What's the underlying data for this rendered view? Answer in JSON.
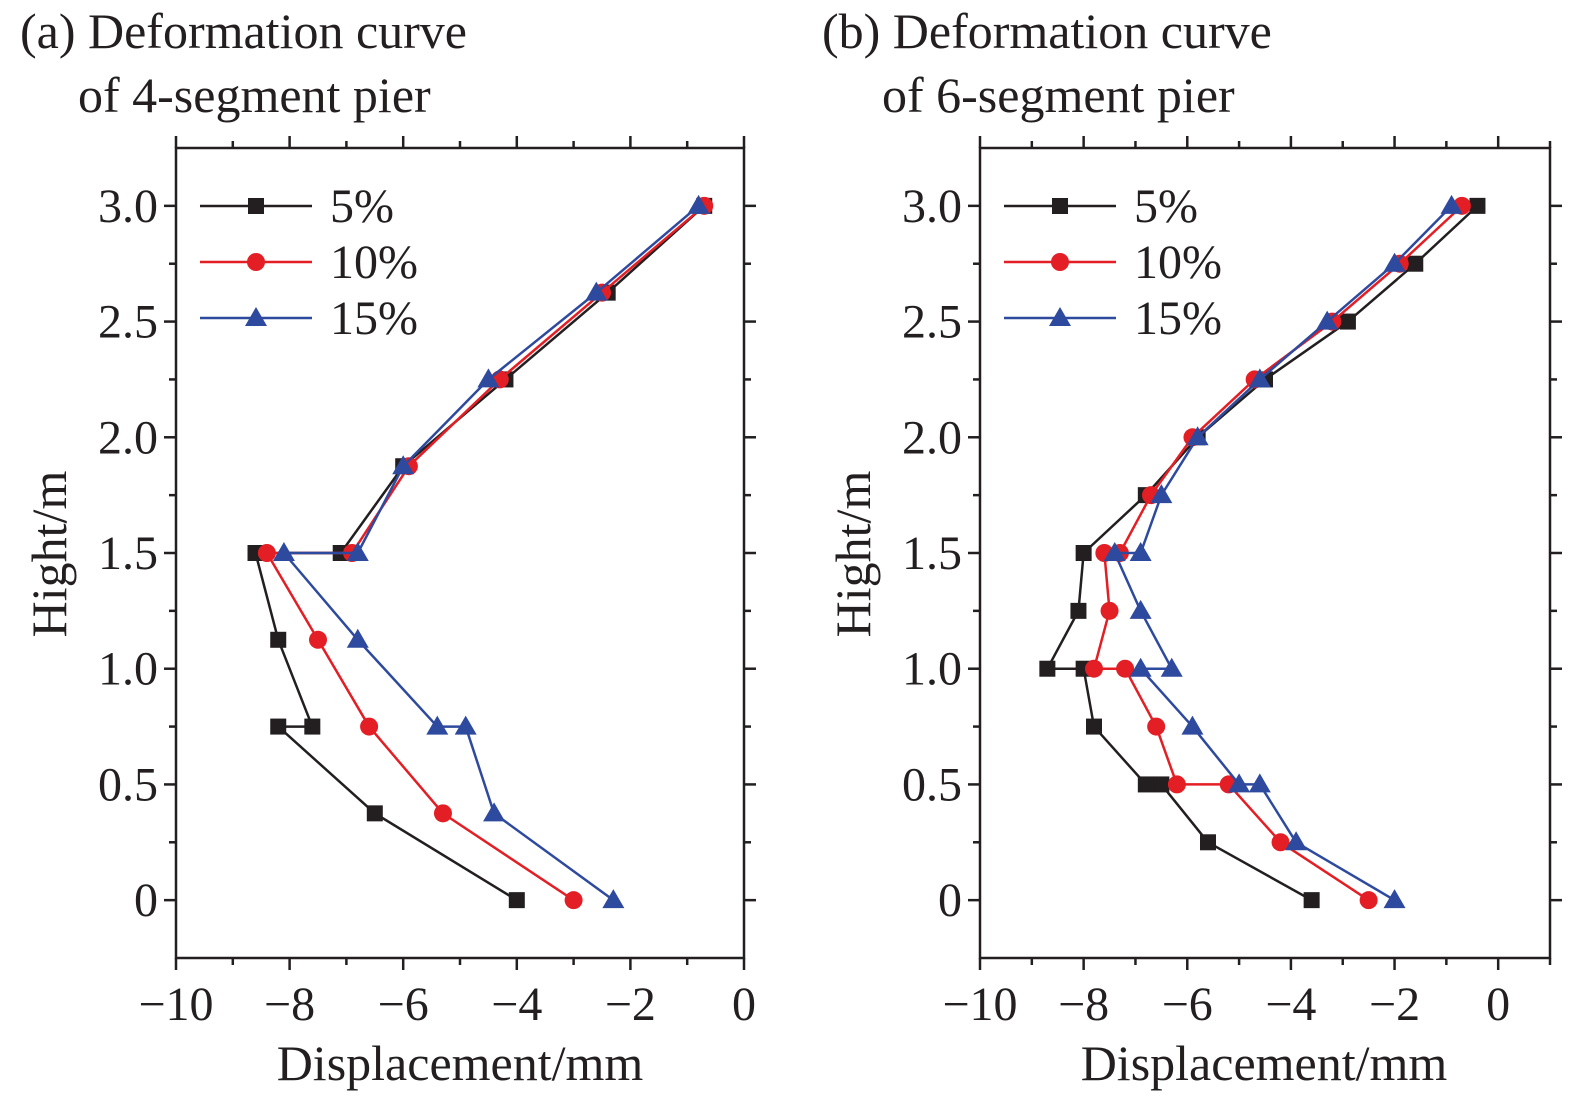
{
  "chart_data": [
    {
      "type": "line",
      "title_line1": "(a) Deformation curve",
      "title_line2": "of 4-segment pier",
      "xlabel": "Displacement/mm",
      "ylabel": "Hight/m",
      "xlim": [
        -10,
        0
      ],
      "ylim": [
        -0.25,
        3.25
      ],
      "xticks": [
        -10,
        -8,
        -6,
        -4,
        -2,
        0
      ],
      "xtick_labels": [
        "−10",
        "−8",
        "−6",
        "−4",
        "−2",
        "0"
      ],
      "yticks": [
        0,
        0.5,
        1.0,
        1.5,
        2.0,
        2.5,
        3.0
      ],
      "ytick_labels": [
        "0",
        "0.5",
        "1.0",
        "1.5",
        "2.0",
        "2.5",
        "3.0"
      ],
      "grid": false,
      "legend_position": "top-left",
      "series": [
        {
          "name": "5%",
          "color": "#231f20",
          "marker": "square",
          "x": [
            -4.0,
            -6.5,
            -8.2,
            -7.6,
            -8.2,
            -8.6,
            -7.1,
            -6.0,
            -4.2,
            -2.4,
            -0.7
          ],
          "y": [
            0,
            0.375,
            0.75,
            0.75,
            1.125,
            1.5,
            1.5,
            1.875,
            2.25,
            2.625,
            3.0
          ]
        },
        {
          "name": "10%",
          "color": "#e31e24",
          "marker": "circle",
          "x": [
            -3.0,
            -5.3,
            -6.6,
            -7.5,
            -8.4,
            -6.9,
            -5.9,
            -4.3,
            -2.5,
            -0.7
          ],
          "y": [
            0,
            0.375,
            0.75,
            1.125,
            1.5,
            1.5,
            1.875,
            2.25,
            2.625,
            3.0
          ]
        },
        {
          "name": "15%",
          "color": "#2e4a9e",
          "marker": "triangle",
          "x": [
            -2.3,
            -4.4,
            -4.9,
            -5.4,
            -6.8,
            -8.1,
            -6.8,
            -6.0,
            -4.5,
            -2.6,
            -0.8
          ],
          "y": [
            0,
            0.375,
            0.75,
            0.75,
            1.125,
            1.5,
            1.5,
            1.875,
            2.25,
            2.625,
            3.0
          ]
        }
      ]
    },
    {
      "type": "line",
      "title_line1": "(b) Deformation curve",
      "title_line2": "of 6-segment pier",
      "xlabel": "Displacement/mm",
      "ylabel": "Hight/m",
      "xlim": [
        -10,
        1
      ],
      "ylim": [
        -0.25,
        3.25
      ],
      "xticks": [
        -10,
        -8,
        -6,
        -4,
        -2,
        0
      ],
      "xtick_labels": [
        "−10",
        "−8",
        "−6",
        "−4",
        "−2",
        "0"
      ],
      "yticks": [
        0,
        0.5,
        1.0,
        1.5,
        2.0,
        2.5,
        3.0
      ],
      "ytick_labels": [
        "0",
        "0.5",
        "1.0",
        "1.5",
        "2.0",
        "2.5",
        "3.0"
      ],
      "grid": false,
      "legend_position": "top-left",
      "series": [
        {
          "name": "5%",
          "color": "#231f20",
          "marker": "square",
          "x": [
            -3.6,
            -5.6,
            -6.5,
            -6.8,
            -7.8,
            -8.0,
            -8.7,
            -8.1,
            -8.0,
            -6.8,
            -5.8,
            -4.5,
            -2.9,
            -1.6,
            -0.4
          ],
          "y": [
            0,
            0.25,
            0.5,
            0.5,
            0.75,
            1.0,
            1.0,
            1.25,
            1.5,
            1.75,
            2.0,
            2.25,
            2.5,
            2.75,
            3.0
          ]
        },
        {
          "name": "10%",
          "color": "#e31e24",
          "marker": "circle",
          "x": [
            -2.5,
            -4.2,
            -5.2,
            -6.2,
            -6.6,
            -7.2,
            -7.8,
            -7.5,
            -7.6,
            -7.3,
            -6.7,
            -5.9,
            -4.7,
            -3.2,
            -1.9,
            -0.7
          ],
          "y": [
            0,
            0.25,
            0.5,
            0.5,
            0.75,
            1.0,
            1.0,
            1.25,
            1.5,
            1.5,
            1.75,
            2.0,
            2.25,
            2.5,
            2.75,
            3.0
          ]
        },
        {
          "name": "15%",
          "color": "#2e4a9e",
          "marker": "triangle",
          "x": [
            -2.0,
            -3.9,
            -4.6,
            -5.0,
            -5.9,
            -6.9,
            -6.3,
            -6.9,
            -7.4,
            -6.9,
            -6.5,
            -5.8,
            -4.6,
            -3.3,
            -2.0,
            -0.9
          ],
          "y": [
            0,
            0.25,
            0.5,
            0.5,
            0.75,
            1.0,
            1.0,
            1.25,
            1.5,
            1.5,
            1.75,
            2.0,
            2.25,
            2.5,
            2.75,
            3.0
          ]
        }
      ]
    }
  ]
}
